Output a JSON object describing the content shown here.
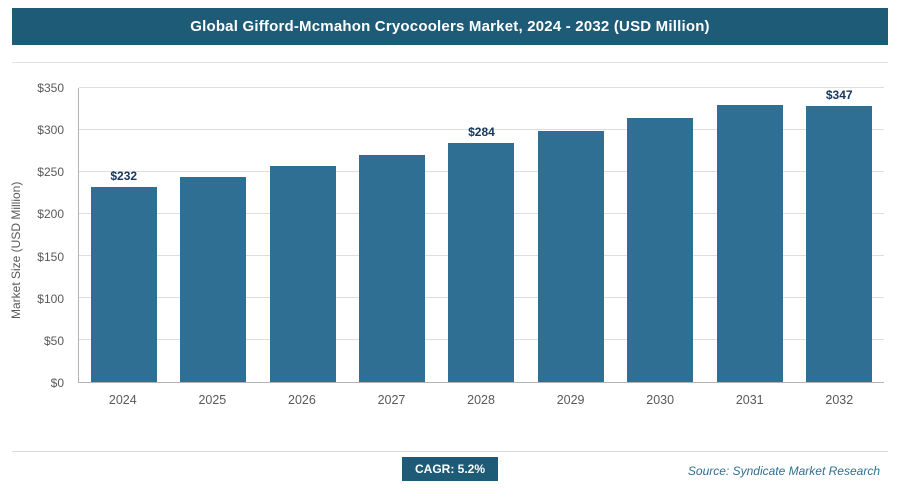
{
  "header": {
    "title": "Global Gifford-Mcmahon Cryocoolers Market, 2024 - 2032 (USD Million)"
  },
  "chart_data": {
    "type": "bar",
    "title": "Global Gifford-Mcmahon Cryocoolers Market, 2024 - 2032 (USD Million)",
    "categories": [
      "2024",
      "2025",
      "2026",
      "2027",
      "2028",
      "2029",
      "2030",
      "2031",
      "2032"
    ],
    "values": [
      232,
      244,
      257,
      270,
      284,
      299,
      314,
      330,
      347
    ],
    "bar_labels": [
      "$232",
      "",
      "",
      "",
      "$284",
      "",
      "",
      "",
      "$347"
    ],
    "xlabel": "",
    "ylabel": "Market Size (USD Million)",
    "ylim": [
      0,
      350
    ],
    "ytick_values": [
      0,
      50,
      100,
      150,
      200,
      250,
      300,
      350
    ],
    "yticks": [
      "$0",
      "$50",
      "$100",
      "$150",
      "$200",
      "$250",
      "$300",
      "$350"
    ],
    "grid": "horizontal",
    "legend": "none",
    "bar_color": "#2f6f94"
  },
  "footer": {
    "cagr_label": "CAGR: 5.2%",
    "source": "Source: Syndicate Market Research"
  }
}
